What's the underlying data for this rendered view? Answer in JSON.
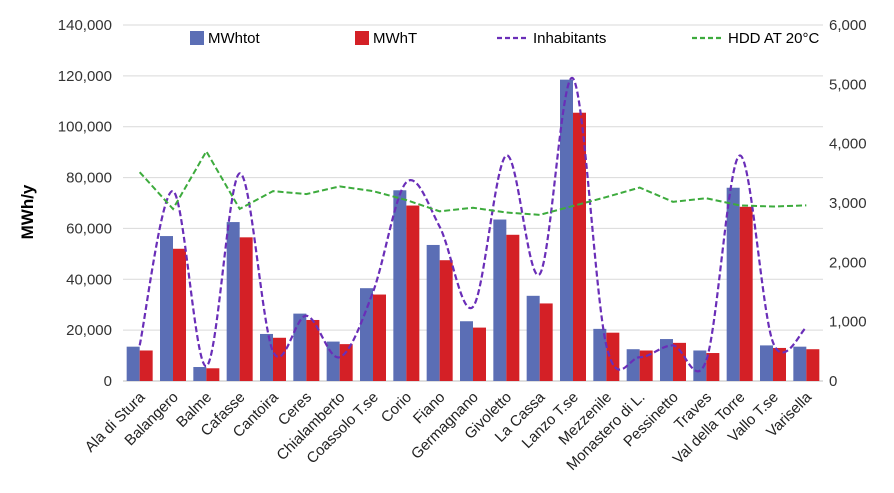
{
  "chart_data": {
    "type": "bar",
    "ylabel": "MWh/y",
    "ylim": [
      0,
      140000
    ],
    "y2lim": [
      0,
      6000
    ],
    "y_ticks": [
      "0",
      "20,000",
      "40,000",
      "60,000",
      "80,000",
      "100,000",
      "120,000",
      "140,000"
    ],
    "y2_ticks": [
      "0",
      "1,000",
      "2,000",
      "3,000",
      "4,000",
      "5,000",
      "6,000"
    ],
    "grid": "horizontal",
    "legend_position": "top",
    "categories": [
      "Ala di Stura",
      "Balangero",
      "Balme",
      "Cafasse",
      "Cantoira",
      "Ceres",
      "Chialamberto",
      "Coassolo T.se",
      "Corio",
      "Fiano",
      "Germagnano",
      "Givoletto",
      "La Cassa",
      "Lanzo T.se",
      "Mezzenile",
      "Monastero di L.",
      "Pessinetto",
      "Traves",
      "Val della Torre",
      "Vallo T.se",
      "Varisella"
    ],
    "series": [
      {
        "name": "MWhtot",
        "type": "bar",
        "axis": "left",
        "color": "#5b6eb5",
        "values": [
          13500,
          57000,
          5500,
          62500,
          18500,
          26500,
          15500,
          36500,
          75000,
          53500,
          23500,
          63500,
          33500,
          118500,
          20500,
          12500,
          16500,
          12000,
          76000,
          14000,
          13500
        ]
      },
      {
        "name": "MWhT",
        "type": "bar",
        "axis": "left",
        "color": "#d42026",
        "values": [
          12000,
          52000,
          5000,
          56500,
          17000,
          24000,
          14500,
          34000,
          69000,
          47500,
          21000,
          57500,
          30500,
          105500,
          19000,
          12000,
          15000,
          11000,
          68500,
          13000,
          12500
        ]
      },
      {
        "name": "Inhabitants",
        "type": "line",
        "axis": "right",
        "color": "#6a2eb8",
        "values": [
          600,
          3200,
          250,
          3500,
          500,
          1100,
          400,
          1500,
          3350,
          2600,
          1250,
          3800,
          1800,
          5100,
          600,
          400,
          600,
          350,
          3800,
          650,
          900
        ]
      },
      {
        "name": "HDD AT 20°C",
        "type": "line",
        "axis": "right",
        "color": "#3dab3d",
        "values": [
          3520,
          2900,
          3870,
          2900,
          3200,
          3150,
          3280,
          3200,
          3050,
          2860,
          2920,
          2840,
          2800,
          2950,
          3100,
          3260,
          3020,
          3080,
          2960,
          2940,
          2960
        ]
      }
    ]
  }
}
